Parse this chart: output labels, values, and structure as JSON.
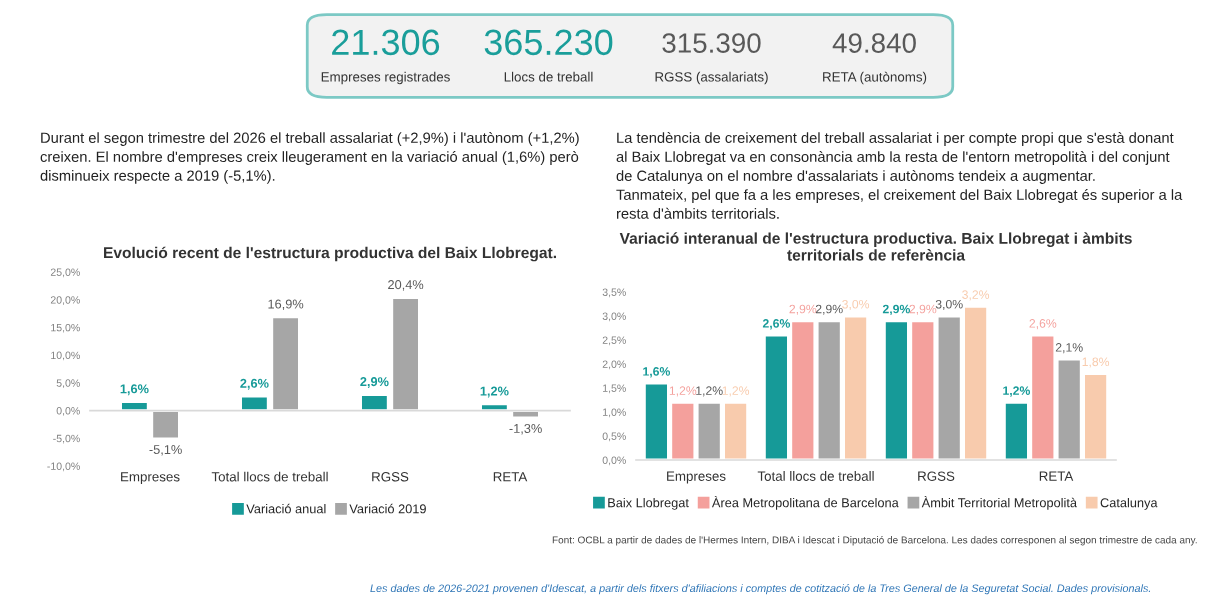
{
  "chart_data": [
    {
      "type": "other",
      "categories": [
        "Empreses registrades",
        "Llocs de treball",
        "RGSS (assalariats)",
        "RETA (autònoms)"
      ],
      "value_labels": [
        "21.306",
        "365.230",
        "315.390",
        "49.840"
      ],
      "colors": [
        "#1a9e9a",
        "#1a9e9a",
        "#595959",
        "#595959"
      ]
    },
    {
      "type": "bar",
      "title": "Evolució recent de l'estructura productiva del Baix Llobregat.",
      "categories": [
        "Empreses",
        "Total llocs de treball",
        "RGSS",
        "RETA"
      ],
      "series": [
        {
          "name": "Variació anual",
          "color": "#169a98",
          "values": [
            1.6,
            2.6,
            2.9,
            1.2
          ],
          "value_labels": [
            "1,6%",
            "2,6%",
            "2,9%",
            "1,2%"
          ]
        },
        {
          "name": "Variació 2019",
          "color": "#a6a6a6",
          "values": [
            -5.1,
            16.9,
            20.4,
            -1.3
          ],
          "value_labels": [
            "-5,1%",
            "16,9%",
            "20,4%",
            "-1,3%"
          ]
        }
      ],
      "ylim": [
        -10,
        25
      ],
      "yticks": [
        {
          "value": -10,
          "label": "-10,0%"
        },
        {
          "value": -5,
          "label": "-5,0%"
        },
        {
          "value": 0,
          "label": "0,0%"
        },
        {
          "value": 5,
          "label": "5,0%"
        },
        {
          "value": 10,
          "label": "10,0%"
        },
        {
          "value": 15,
          "label": "15,0%"
        },
        {
          "value": 20,
          "label": "20,0%"
        },
        {
          "value": 25,
          "label": "25,0%"
        }
      ],
      "legend": "bottom",
      "annotations": [
        "Durant el segon trimestre del 2026 el treball assalariat (+2,9%) i l'autònom (+1,2%)",
        "creixen. El nombre d'empreses creix lleugerament en la variació anual (1,6%) però",
        "disminueix respecte a 2019 (-5,1%)."
      ]
    },
    {
      "type": "bar",
      "title": "Variació interanual de l'estructura productiva. Baix Llobregat i àmbits territorials de referència",
      "categories": [
        "Empreses",
        "Total llocs de treball",
        "RGSS",
        "RETA"
      ],
      "series": [
        {
          "name": "Baix Llobregat",
          "color": "#169a98",
          "values": [
            1.6,
            2.6,
            2.9,
            1.2
          ],
          "value_labels": [
            "1,6%",
            "2,6%",
            "2,9%",
            "1,2%"
          ]
        },
        {
          "name": "Àrea Metropolitana de Barcelona",
          "color": "#f4a09c",
          "values": [
            1.2,
            2.9,
            2.9,
            2.6
          ],
          "value_labels": [
            "1,2%",
            "2,9%",
            "2,9%",
            "2,6%"
          ]
        },
        {
          "name": "Àmbit Territorial Metropolità",
          "color": "#a6a6a6",
          "values": [
            1.2,
            2.9,
            3.0,
            2.1
          ],
          "value_labels": [
            "1,2%",
            "2,9%",
            "3,0%",
            "2,1%"
          ]
        },
        {
          "name": "Catalunya",
          "color": "#f8cbad",
          "values": [
            1.2,
            3.0,
            3.2,
            1.8
          ],
          "value_labels": [
            "1,2%",
            "3,0%",
            "3,2%",
            "1,8%"
          ]
        }
      ],
      "ylim": [
        0,
        3.5
      ],
      "yticks": [
        {
          "value": 0,
          "label": "0,0%"
        },
        {
          "value": 0.5,
          "label": "0,5%"
        },
        {
          "value": 1,
          "label": "1,0%"
        },
        {
          "value": 1.5,
          "label": "1,5%"
        },
        {
          "value": 2,
          "label": "2,0%"
        },
        {
          "value": 2.5,
          "label": "2,5%"
        },
        {
          "value": 3,
          "label": "3,0%"
        },
        {
          "value": 3.5,
          "label": "3,5%"
        }
      ],
      "legend": "bottom",
      "annotations": [
        "La tendència de creixement del treball assalariat i per compte propi que s'està donant",
        "al Baix Llobregat va en consonància amb la resta de l'entorn metropolità i del conjunt",
        "de Catalunya on el nombre d'assalariats i autònoms tendeix a augmentar.",
        "Tanmateix, pel que fa a les empreses, el creixement del Baix Llobregat és superior a la",
        "resta d'àmbits territorials.",
        "Font: OCBL a partir de dades de l'Hermes Intern, DIBA i Idescat i Diputació de Barcelona. Les dades corresponen al segon trimestre de cada any.",
        "Les dades de 2026-2021 provenen d'Idescat, a partir dels fitxers d'afiliacions i comptes de cotització de la Tres General de la Seguretat Social. Dades provisionals."
      ]
    }
  ]
}
